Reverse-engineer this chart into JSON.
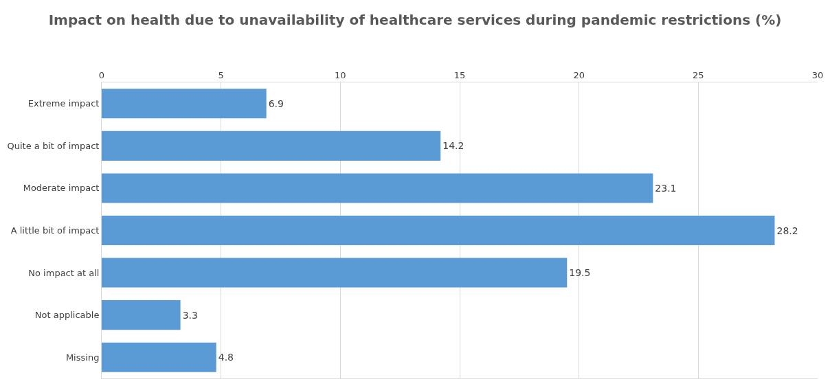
{
  "chart_data": {
    "type": "bar",
    "orientation": "horizontal",
    "title": "Impact on health due to unavailability of healthcare services during pandemic restrictions (%)",
    "categories": [
      "Extreme impact",
      "Quite a bit of impact",
      "Moderate impact",
      "A little bit of impact",
      "No impact at all",
      "Not applicable",
      "Missing"
    ],
    "values": [
      6.9,
      14.2,
      23.1,
      28.2,
      19.5,
      3.3,
      4.8
    ],
    "color": "#5b9bd5",
    "xlim": [
      0,
      30
    ],
    "xticks": [
      0,
      5,
      10,
      15,
      20,
      25,
      30
    ],
    "grid": "x",
    "data_labels": true,
    "legend": false
  }
}
